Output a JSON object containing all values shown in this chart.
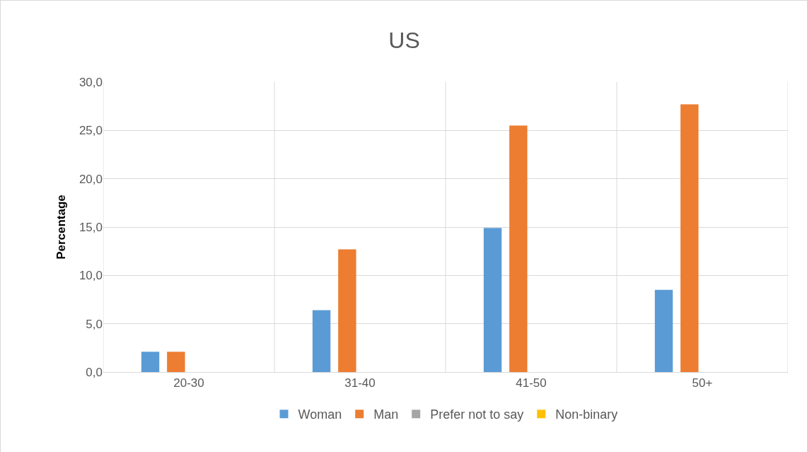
{
  "chart_data": {
    "type": "bar",
    "title": "US",
    "ylabel": "Percentage",
    "categories": [
      "20-30",
      "31-40",
      "41-50",
      "50+"
    ],
    "series": [
      {
        "name": "Woman",
        "color": "#5b9bd5",
        "values": [
          2.1,
          6.4,
          14.9,
          8.5
        ]
      },
      {
        "name": "Man",
        "color": "#ed7d31",
        "values": [
          2.1,
          12.7,
          25.5,
          27.7
        ]
      },
      {
        "name": "Prefer not to say",
        "color": "#a5a5a5",
        "values": [
          0,
          0,
          0,
          0
        ]
      },
      {
        "name": "Non-binary",
        "color": "#ffc000",
        "values": [
          0,
          0,
          0,
          0
        ]
      }
    ],
    "ylim": [
      0,
      30
    ],
    "yticks": [
      {
        "value": 0,
        "label": "0,0"
      },
      {
        "value": 5,
        "label": "5,0"
      },
      {
        "value": 10,
        "label": "10,0"
      },
      {
        "value": 15,
        "label": "15,0"
      },
      {
        "value": 20,
        "label": "20,0"
      },
      {
        "value": 25,
        "label": "25,0"
      },
      {
        "value": 30,
        "label": "30,0"
      }
    ],
    "grid": true,
    "legend": "bottom"
  }
}
